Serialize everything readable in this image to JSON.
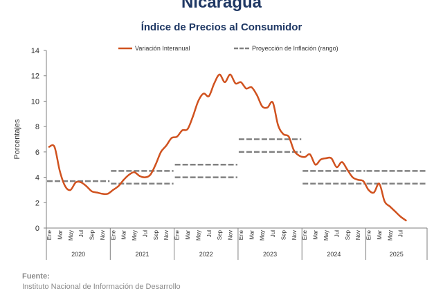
{
  "title": "Nicaragua",
  "subtitle": "Índice de Precios al Consumidor",
  "source_label": "Fuente:",
  "source_text": "Instituto Nacional de Información de Desarrollo",
  "colors": {
    "series": "#d0521f",
    "projection": "#808080",
    "axis": "#7f7f7f",
    "title": "#1f3864"
  },
  "chart_data": {
    "type": "line",
    "ylabel": "Porcentajes",
    "ylim": [
      0,
      14
    ],
    "yticks": [
      0,
      2,
      4,
      6,
      8,
      10,
      12,
      14
    ],
    "legend_position": "top",
    "month_labels": [
      "Ene",
      "Mar",
      "May",
      "Jul",
      "Sep",
      "Nov"
    ],
    "years": [
      "2020",
      "2021",
      "2022",
      "2023",
      "2024",
      "2025"
    ],
    "last_year_month_labels": [
      "Ene",
      "Mar",
      "May",
      "Jul"
    ],
    "series": [
      {
        "name": "Variación Interanual",
        "x_start": "2020-01",
        "values": [
          6.4,
          6.4,
          4.5,
          3.3,
          3.0,
          3.6,
          3.6,
          3.3,
          2.9,
          2.8,
          2.7,
          2.7,
          3.0,
          3.3,
          3.8,
          4.2,
          4.4,
          4.1,
          4.0,
          4.2,
          5.0,
          6.0,
          6.5,
          7.1,
          7.2,
          7.7,
          7.8,
          8.8,
          10.0,
          10.6,
          10.4,
          11.4,
          12.1,
          11.5,
          12.1,
          11.4,
          11.5,
          11.0,
          11.1,
          10.5,
          9.6,
          9.5,
          9.9,
          8.1,
          7.4,
          7.2,
          6.1,
          5.7,
          5.6,
          5.8,
          5.0,
          5.4,
          5.5,
          5.5,
          4.8,
          5.2,
          4.6,
          4.0,
          3.8,
          3.7,
          3.0,
          2.8,
          3.5,
          2.1,
          1.7,
          1.3,
          0.9,
          0.6
        ]
      }
    ],
    "projection": {
      "name": "Proyección de Inflación (rango)",
      "bands": [
        {
          "year": "2020",
          "low": 3.7,
          "high": 3.7
        },
        {
          "year": "2021",
          "low": 3.5,
          "high": 4.5
        },
        {
          "year": "2022",
          "low": 4.0,
          "high": 5.0
        },
        {
          "year": "2023",
          "low": 6.0,
          "high": 7.0
        },
        {
          "year": "2024",
          "low": 3.5,
          "high": 4.5
        },
        {
          "year": "2025",
          "low": 3.5,
          "high": 4.5
        }
      ]
    }
  }
}
